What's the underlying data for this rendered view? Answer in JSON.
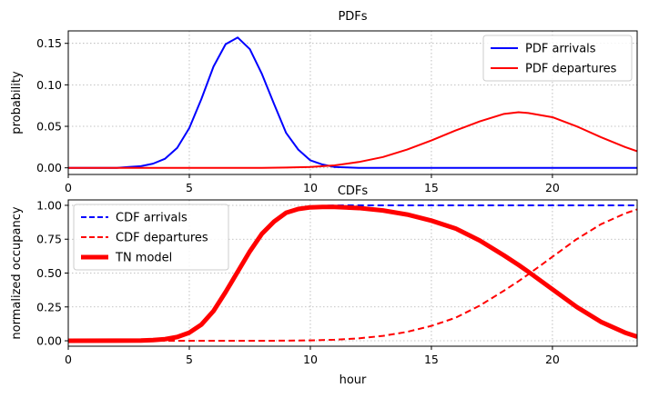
{
  "chart_data": [
    {
      "type": "line",
      "title": "PDFs",
      "xlabel": "",
      "ylabel": "probability",
      "xlim": [
        0,
        23.5
      ],
      "ylim": [
        -0.008,
        0.165
      ],
      "xticks": [
        0,
        5,
        10,
        15,
        20
      ],
      "xtick_labels": [
        "0",
        "5",
        "10",
        "15",
        "20"
      ],
      "yticks": [
        0.0,
        0.05,
        0.1,
        0.15
      ],
      "ytick_labels": [
        "0.00",
        "0.05",
        "0.10",
        "0.15"
      ],
      "grid": true,
      "legend_position": "upper right",
      "series": [
        {
          "name": "PDF arrivals",
          "color": "#0000ff",
          "style": "solid",
          "x": [
            0,
            1,
            2,
            2.5,
            3,
            3.5,
            4,
            4.5,
            5,
            5.5,
            6,
            6.5,
            7,
            7.5,
            8,
            8.5,
            9,
            9.5,
            10,
            10.5,
            11,
            11.5,
            12,
            13,
            14,
            16,
            18,
            20,
            22,
            23.5
          ],
          "y": [
            0,
            0,
            0,
            0.001,
            0.002,
            0.005,
            0.011,
            0.024,
            0.048,
            0.083,
            0.122,
            0.149,
            0.157,
            0.143,
            0.113,
            0.077,
            0.042,
            0.022,
            0.009,
            0.004,
            0.001,
            0.0005,
            0,
            0,
            0,
            0,
            0,
            0,
            0,
            0
          ]
        },
        {
          "name": "PDF departures",
          "color": "#ff0000",
          "style": "solid",
          "x": [
            0,
            4,
            8,
            9,
            10,
            11,
            12,
            13,
            14,
            15,
            16,
            17,
            18,
            18.6,
            19,
            20,
            21,
            22,
            23,
            23.5
          ],
          "y": [
            0,
            0,
            0,
            0.0003,
            0.001,
            0.003,
            0.007,
            0.013,
            0.022,
            0.033,
            0.045,
            0.056,
            0.065,
            0.067,
            0.066,
            0.061,
            0.05,
            0.037,
            0.025,
            0.02
          ]
        }
      ]
    },
    {
      "type": "line",
      "title": "CDFs",
      "xlabel": "hour",
      "ylabel": "normalized occupancy",
      "xlim": [
        0,
        23.5
      ],
      "ylim": [
        -0.04,
        1.04
      ],
      "xticks": [
        0,
        5,
        10,
        15,
        20
      ],
      "xtick_labels": [
        "0",
        "5",
        "10",
        "15",
        "20"
      ],
      "yticks": [
        0.0,
        0.25,
        0.5,
        0.75,
        1.0
      ],
      "ytick_labels": [
        "0.00",
        "0.25",
        "0.50",
        "0.75",
        "1.00"
      ],
      "grid": true,
      "legend_position": "upper left",
      "series": [
        {
          "name": "CDF arrivals",
          "color": "#0000ff",
          "style": "dashed",
          "width": 2,
          "x": [
            0,
            3,
            3.5,
            4,
            4.5,
            5,
            5.5,
            6,
            6.5,
            7,
            7.5,
            8,
            8.5,
            9,
            9.5,
            10,
            10.5,
            11,
            12,
            14,
            16,
            18,
            20,
            22,
            23.5
          ],
          "y": [
            0,
            0.002,
            0.005,
            0.012,
            0.028,
            0.06,
            0.12,
            0.22,
            0.36,
            0.51,
            0.66,
            0.79,
            0.88,
            0.945,
            0.975,
            0.99,
            0.996,
            0.999,
            1.0,
            1.0,
            1.0,
            1.0,
            1.0,
            1.0,
            1.0
          ]
        },
        {
          "name": "CDF departures",
          "color": "#ff0000",
          "style": "dashed",
          "width": 2,
          "x": [
            0,
            5,
            8,
            9,
            10,
            11,
            12,
            13,
            14,
            15,
            16,
            17,
            18,
            18.6,
            19,
            20,
            21,
            22,
            23,
            23.5
          ],
          "y": [
            0,
            0,
            0,
            0.001,
            0.003,
            0.008,
            0.018,
            0.036,
            0.066,
            0.11,
            0.17,
            0.26,
            0.37,
            0.44,
            0.49,
            0.62,
            0.75,
            0.86,
            0.94,
            0.97
          ]
        },
        {
          "name": "TN model",
          "color": "#ff0000",
          "style": "solid",
          "width": 5,
          "x": [
            0,
            3,
            3.5,
            4,
            4.5,
            5,
            5.5,
            6,
            6.5,
            7,
            7.5,
            8,
            8.5,
            9,
            9.5,
            10,
            10.5,
            11,
            12,
            13,
            14,
            15,
            16,
            17,
            18,
            18.6,
            19,
            20,
            21,
            22,
            23,
            23.5
          ],
          "y": [
            0,
            0.002,
            0.005,
            0.012,
            0.028,
            0.06,
            0.12,
            0.22,
            0.36,
            0.51,
            0.66,
            0.79,
            0.88,
            0.945,
            0.973,
            0.985,
            0.988,
            0.988,
            0.98,
            0.962,
            0.932,
            0.887,
            0.829,
            0.74,
            0.63,
            0.56,
            0.51,
            0.38,
            0.25,
            0.14,
            0.06,
            0.03
          ]
        }
      ]
    }
  ]
}
